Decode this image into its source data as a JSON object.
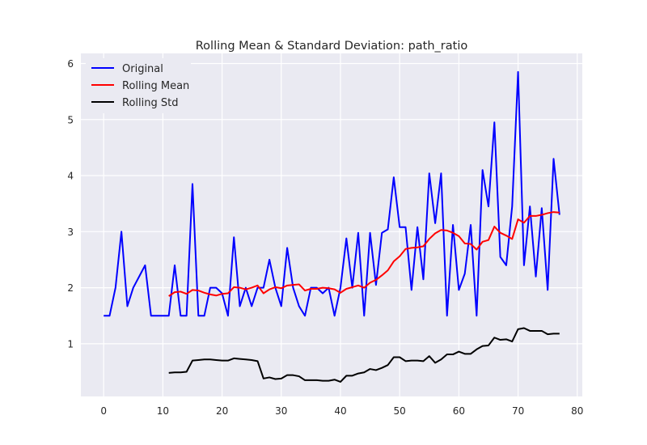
{
  "chart_data": {
    "type": "line",
    "title": "Rolling Mean & Standard Deviation: path_ratio",
    "xlabel": "",
    "ylabel": "",
    "xlim": [
      -3.85,
      80.85
    ],
    "ylim": [
      0.06,
      6.18
    ],
    "xticks": [
      0,
      10,
      20,
      30,
      40,
      50,
      60,
      70,
      80
    ],
    "yticks": [
      1,
      2,
      3,
      4,
      5,
      6
    ],
    "grid": true,
    "legend_position": "top-left",
    "series": [
      {
        "name": "Original",
        "color": "#0000ff",
        "x": [
          0,
          1,
          2,
          3,
          4,
          5,
          6,
          7,
          8,
          9,
          10,
          11,
          12,
          13,
          14,
          15,
          16,
          17,
          18,
          19,
          20,
          21,
          22,
          23,
          24,
          25,
          26,
          27,
          28,
          29,
          30,
          31,
          32,
          33,
          34,
          35,
          36,
          37,
          38,
          39,
          40,
          41,
          42,
          43,
          44,
          45,
          46,
          47,
          48,
          49,
          50,
          51,
          52,
          53,
          54,
          55,
          56,
          57,
          58,
          59,
          60,
          61,
          62,
          63,
          64,
          65,
          66,
          67,
          68,
          69,
          70,
          71,
          72,
          73,
          74,
          75,
          76,
          77
        ],
        "y": [
          1.5,
          1.5,
          2.0,
          3.0,
          1.67,
          2.0,
          2.2,
          2.4,
          1.5,
          1.5,
          1.5,
          1.5,
          2.4,
          1.5,
          1.5,
          3.85,
          1.5,
          1.5,
          2.0,
          2.0,
          1.9,
          1.5,
          2.9,
          1.67,
          2.0,
          1.67,
          2.0,
          2.0,
          2.5,
          2.0,
          1.67,
          2.71,
          2.0,
          1.67,
          1.5,
          2.0,
          2.0,
          1.9,
          2.0,
          1.5,
          2.0,
          2.88,
          2.0,
          2.98,
          1.5,
          2.98,
          2.05,
          2.98,
          3.04,
          3.97,
          3.08,
          3.08,
          1.96,
          3.08,
          2.15,
          4.04,
          3.15,
          4.04,
          1.5,
          3.12,
          1.96,
          2.25,
          3.12,
          1.5,
          4.1,
          3.45,
          4.95,
          2.55,
          2.4,
          3.45,
          5.85,
          2.4,
          3.45,
          2.2,
          3.42,
          1.96,
          4.3,
          3.3
        ]
      },
      {
        "name": "Rolling Mean",
        "color": "#ff0000",
        "x": [
          11,
          12,
          13,
          14,
          15,
          16,
          17,
          18,
          19,
          20,
          21,
          22,
          23,
          24,
          25,
          26,
          27,
          28,
          29,
          30,
          31,
          32,
          33,
          34,
          35,
          36,
          37,
          38,
          39,
          40,
          41,
          42,
          43,
          44,
          45,
          46,
          47,
          48,
          49,
          50,
          51,
          52,
          53,
          54,
          55,
          56,
          57,
          58,
          59,
          60,
          61,
          62,
          63,
          64,
          65,
          66,
          67,
          68,
          69,
          70,
          71,
          72,
          73,
          74,
          75,
          76,
          77
        ],
        "y": [
          1.85,
          1.92,
          1.93,
          1.89,
          1.96,
          1.95,
          1.91,
          1.88,
          1.86,
          1.89,
          1.9,
          2.01,
          2.0,
          1.97,
          2.0,
          2.04,
          1.9,
          1.97,
          2.01,
          1.99,
          2.04,
          2.05,
          2.06,
          1.95,
          1.98,
          1.98,
          2.0,
          1.99,
          1.97,
          1.91,
          1.98,
          2.01,
          2.04,
          2.0,
          2.09,
          2.14,
          2.22,
          2.31,
          2.47,
          2.56,
          2.69,
          2.71,
          2.72,
          2.74,
          2.87,
          2.97,
          3.03,
          3.02,
          2.98,
          2.92,
          2.79,
          2.78,
          2.68,
          2.82,
          2.85,
          3.09,
          2.98,
          2.93,
          2.87,
          3.22,
          3.16,
          3.28,
          3.28,
          3.3,
          3.33,
          3.35,
          3.34
        ]
      },
      {
        "name": "Rolling Std",
        "color": "#000000",
        "x": [
          11,
          12,
          13,
          14,
          15,
          16,
          17,
          18,
          19,
          20,
          21,
          22,
          23,
          24,
          25,
          26,
          27,
          28,
          29,
          30,
          31,
          32,
          33,
          34,
          35,
          36,
          37,
          38,
          39,
          40,
          41,
          42,
          43,
          44,
          45,
          46,
          47,
          48,
          49,
          50,
          51,
          52,
          53,
          54,
          55,
          56,
          57,
          58,
          59,
          60,
          61,
          62,
          63,
          64,
          65,
          66,
          67,
          68,
          69,
          70,
          71,
          72,
          73,
          74,
          75,
          76,
          77
        ],
        "y": [
          0.48,
          0.49,
          0.49,
          0.5,
          0.7,
          0.71,
          0.72,
          0.72,
          0.71,
          0.7,
          0.7,
          0.74,
          0.73,
          0.72,
          0.71,
          0.69,
          0.38,
          0.4,
          0.37,
          0.38,
          0.44,
          0.44,
          0.42,
          0.35,
          0.35,
          0.35,
          0.34,
          0.34,
          0.36,
          0.32,
          0.43,
          0.43,
          0.47,
          0.49,
          0.55,
          0.53,
          0.57,
          0.62,
          0.76,
          0.76,
          0.69,
          0.7,
          0.7,
          0.69,
          0.78,
          0.66,
          0.72,
          0.81,
          0.81,
          0.86,
          0.82,
          0.82,
          0.9,
          0.96,
          0.97,
          1.11,
          1.07,
          1.08,
          1.04,
          1.26,
          1.28,
          1.23,
          1.23,
          1.23,
          1.17,
          1.18,
          1.18
        ]
      }
    ]
  }
}
